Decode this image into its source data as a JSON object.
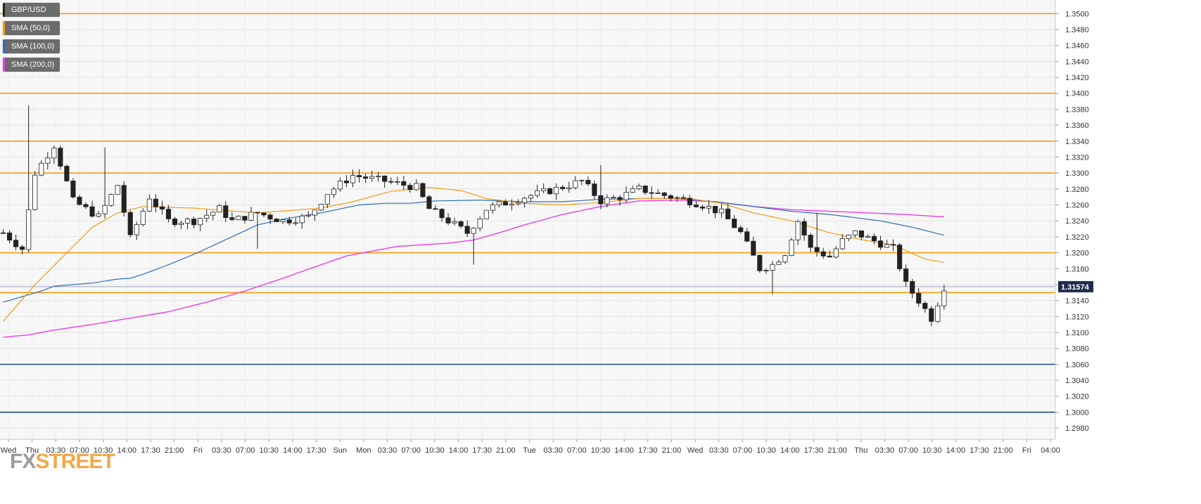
{
  "chart_data": {
    "type": "candlestick",
    "symbol": "GBP/USD",
    "legend": [
      {
        "label": "GBP/USD",
        "color": "#222222"
      },
      {
        "label": "SMA (50,0)",
        "color": "#f39c12"
      },
      {
        "label": "SMA (100,0)",
        "color": "#2e6fb7"
      },
      {
        "label": "SMA (200,0)",
        "color": "#e83fe6"
      }
    ],
    "y_ticks": [
      "1.3500",
      "1.3480",
      "1.3460",
      "1.3440",
      "1.3420",
      "1.3400",
      "1.3380",
      "1.3360",
      "1.3340",
      "1.3320",
      "1.3300",
      "1.3280",
      "1.3260",
      "1.3240",
      "1.3220",
      "1.3200",
      "1.3180",
      "1.3160",
      "1.3140",
      "1.3120",
      "1.3100",
      "1.3080",
      "1.3060",
      "1.3040",
      "1.3020",
      "1.3000",
      "1.2980"
    ],
    "ylim": [
      1.2966,
      1.3517
    ],
    "x_ticks": [
      "Wed",
      "Thu",
      "03:30",
      "07:00",
      "10:30",
      "14:00",
      "17:30",
      "21:00",
      "Fri",
      "03:30",
      "07:00",
      "10:30",
      "14:00",
      "17:30",
      "Sun",
      "Mon",
      "03:30",
      "07:00",
      "10:30",
      "14:00",
      "17:30",
      "21:00",
      "Tue",
      "03:30",
      "07:00",
      "10:30",
      "14:00",
      "17:30",
      "21:00",
      "Wed",
      "03:30",
      "07:00",
      "10:30",
      "14:00",
      "17:30",
      "21:00",
      "Thu",
      "03:30",
      "07:00",
      "10:30",
      "14:00",
      "17:30",
      "21:00",
      "Fri",
      "04:00"
    ],
    "x_slot_count": 166,
    "current_price": "1.31574",
    "current_price_value": 1.31574,
    "resistance_levels": [
      1.35,
      1.34,
      1.334,
      1.33,
      1.32,
      1.315
    ],
    "support_levels": [
      1.306,
      1.3
    ],
    "level_colors": {
      "resistance": "#f39c12",
      "support": "#1f4e8c"
    },
    "price_keypoints": [
      [
        0,
        1.3225
      ],
      [
        3,
        1.3205
      ],
      [
        5,
        1.33
      ],
      [
        8,
        1.3335
      ],
      [
        11,
        1.3265
      ],
      [
        15,
        1.3245
      ],
      [
        18,
        1.3285
      ],
      [
        20,
        1.3218
      ],
      [
        23,
        1.327
      ],
      [
        26,
        1.324
      ],
      [
        30,
        1.324
      ],
      [
        34,
        1.3255
      ],
      [
        36,
        1.324
      ],
      [
        40,
        1.325
      ],
      [
        44,
        1.324
      ],
      [
        48,
        1.3245
      ],
      [
        51,
        1.3275
      ],
      [
        55,
        1.3297
      ],
      [
        60,
        1.329
      ],
      [
        65,
        1.3282
      ],
      [
        67,
        1.3255
      ],
      [
        70,
        1.324
      ],
      [
        73,
        1.3225
      ],
      [
        76,
        1.3255
      ],
      [
        82,
        1.327
      ],
      [
        87,
        1.328
      ],
      [
        91,
        1.329
      ],
      [
        94,
        1.3265
      ],
      [
        97,
        1.327
      ],
      [
        100,
        1.328
      ],
      [
        104,
        1.3272
      ],
      [
        108,
        1.3265
      ],
      [
        110,
        1.326
      ],
      [
        113,
        1.325
      ],
      [
        116,
        1.3225
      ],
      [
        119,
        1.318
      ],
      [
        121,
        1.3185
      ],
      [
        123,
        1.32
      ],
      [
        125,
        1.324
      ],
      [
        127,
        1.3205
      ],
      [
        130,
        1.3195
      ],
      [
        132,
        1.3215
      ],
      [
        134,
        1.3225
      ],
      [
        137,
        1.3215
      ],
      [
        140,
        1.3205
      ],
      [
        142,
        1.316
      ],
      [
        144,
        1.314
      ],
      [
        146,
        1.3118
      ],
      [
        148,
        1.3157
      ]
    ],
    "sma50_keypoints": [
      [
        0,
        1.3114
      ],
      [
        5,
        1.316
      ],
      [
        10,
        1.32
      ],
      [
        14,
        1.3232
      ],
      [
        18,
        1.325
      ],
      [
        22,
        1.3258
      ],
      [
        30,
        1.3256
      ],
      [
        40,
        1.325
      ],
      [
        50,
        1.3256
      ],
      [
        55,
        1.3264
      ],
      [
        61,
        1.3277
      ],
      [
        67,
        1.3282
      ],
      [
        72,
        1.3278
      ],
      [
        76,
        1.3268
      ],
      [
        82,
        1.3262
      ],
      [
        88,
        1.326
      ],
      [
        94,
        1.3263
      ],
      [
        100,
        1.3268
      ],
      [
        108,
        1.3268
      ],
      [
        113,
        1.3262
      ],
      [
        118,
        1.325
      ],
      [
        124,
        1.324
      ],
      [
        130,
        1.3225
      ],
      [
        136,
        1.3215
      ],
      [
        140,
        1.321
      ],
      [
        145,
        1.3192
      ],
      [
        148,
        1.3188
      ]
    ],
    "sma100_keypoints": [
      [
        0,
        1.3138
      ],
      [
        6,
        1.3152
      ],
      [
        8,
        1.3158
      ],
      [
        14,
        1.3162
      ],
      [
        18,
        1.3167
      ],
      [
        20,
        1.3168
      ],
      [
        22,
        1.3173
      ],
      [
        26,
        1.3185
      ],
      [
        30,
        1.3198
      ],
      [
        36,
        1.322
      ],
      [
        40,
        1.3235
      ],
      [
        44,
        1.3242
      ],
      [
        50,
        1.325
      ],
      [
        56,
        1.326
      ],
      [
        60,
        1.3262
      ],
      [
        64,
        1.3262
      ],
      [
        68,
        1.3265
      ],
      [
        75,
        1.3266
      ],
      [
        82,
        1.3264
      ],
      [
        88,
        1.3264
      ],
      [
        94,
        1.3267
      ],
      [
        100,
        1.3268
      ],
      [
        106,
        1.3268
      ],
      [
        112,
        1.3264
      ],
      [
        118,
        1.3258
      ],
      [
        124,
        1.3252
      ],
      [
        130,
        1.3248
      ],
      [
        138,
        1.324
      ],
      [
        143,
        1.3232
      ],
      [
        148,
        1.3222
      ]
    ],
    "sma200_keypoints": [
      [
        0,
        1.3094
      ],
      [
        4,
        1.3097
      ],
      [
        8,
        1.3103
      ],
      [
        14,
        1.311
      ],
      [
        20,
        1.3118
      ],
      [
        26,
        1.3126
      ],
      [
        32,
        1.3138
      ],
      [
        38,
        1.3152
      ],
      [
        44,
        1.3168
      ],
      [
        50,
        1.3185
      ],
      [
        54,
        1.3196
      ],
      [
        58,
        1.3202
      ],
      [
        62,
        1.3208
      ],
      [
        66,
        1.321
      ],
      [
        70,
        1.3212
      ],
      [
        74,
        1.3216
      ],
      [
        78,
        1.3225
      ],
      [
        82,
        1.3235
      ],
      [
        88,
        1.3248
      ],
      [
        94,
        1.3258
      ],
      [
        100,
        1.3265
      ],
      [
        106,
        1.3266
      ],
      [
        112,
        1.3264
      ],
      [
        118,
        1.3258
      ],
      [
        124,
        1.3254
      ],
      [
        130,
        1.3252
      ],
      [
        136,
        1.325
      ],
      [
        142,
        1.3248
      ],
      [
        148,
        1.3245
      ]
    ],
    "spikes": [
      {
        "slot": 4,
        "high": 1.3385
      },
      {
        "slot": 16,
        "high": 1.3332
      },
      {
        "slot": 40,
        "low": 1.3205
      },
      {
        "slot": 74,
        "low": 1.3185
      },
      {
        "slot": 94,
        "high": 1.331
      },
      {
        "slot": 121,
        "low": 1.3148
      },
      {
        "slot": 128,
        "high": 1.325
      },
      {
        "slot": 146,
        "low": 1.3108
      }
    ]
  },
  "logo": {
    "part1": "FX",
    "part2": "STREET"
  }
}
